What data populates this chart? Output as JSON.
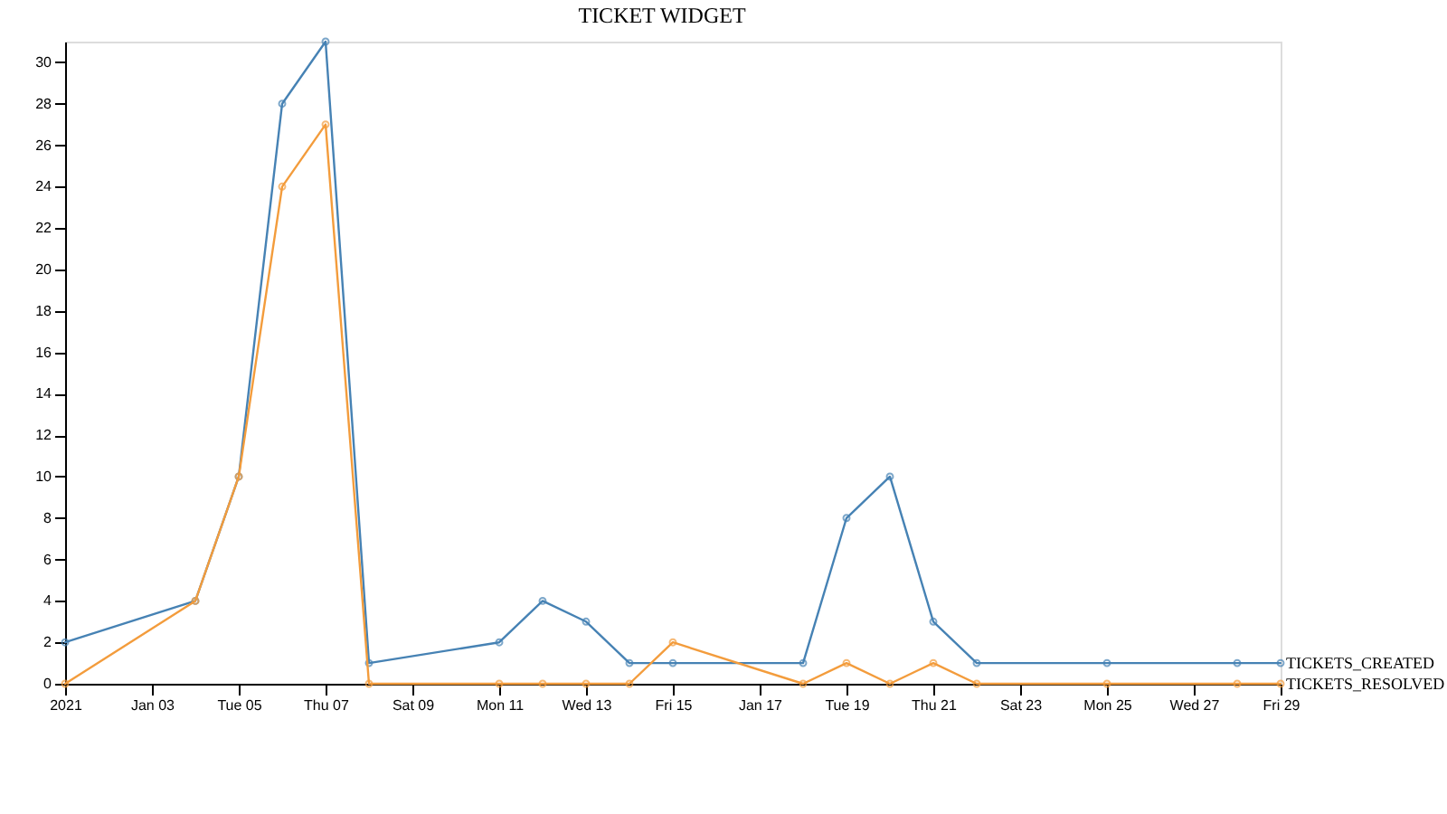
{
  "chart_data": {
    "type": "line",
    "title": "TICKET WIDGET",
    "x": [
      "2021-01-01",
      "2021-01-04",
      "2021-01-05",
      "2021-01-06",
      "2021-01-07",
      "2021-01-08",
      "2021-01-11",
      "2021-01-12",
      "2021-01-13",
      "2021-01-14",
      "2021-01-15",
      "2021-01-18",
      "2021-01-19",
      "2021-01-20",
      "2021-01-21",
      "2021-01-22",
      "2021-01-25",
      "2021-01-28",
      "2021-01-29"
    ],
    "series": [
      {
        "name": "TICKETS_CREATED",
        "color": "#4682b4",
        "values": [
          2,
          4,
          10,
          28,
          31,
          1,
          2,
          4,
          3,
          1,
          1,
          1,
          8,
          10,
          3,
          1,
          1,
          1,
          1
        ]
      },
      {
        "name": "TICKETS_RESOLVED",
        "color": "#f39c3c",
        "values": [
          0,
          4,
          10,
          24,
          27,
          0,
          0,
          0,
          0,
          0,
          2,
          0,
          1,
          0,
          1,
          0,
          0,
          0,
          0
        ]
      }
    ],
    "xlim": [
      "2021-01-01",
      "2021-01-29"
    ],
    "xticks": [
      {
        "value": "2021-01-01",
        "label": "2021"
      },
      {
        "value": "2021-01-03",
        "label": "Jan 03"
      },
      {
        "value": "2021-01-05",
        "label": "Tue 05"
      },
      {
        "value": "2021-01-07",
        "label": "Thu 07"
      },
      {
        "value": "2021-01-09",
        "label": "Sat 09"
      },
      {
        "value": "2021-01-11",
        "label": "Mon 11"
      },
      {
        "value": "2021-01-13",
        "label": "Wed 13"
      },
      {
        "value": "2021-01-15",
        "label": "Fri 15"
      },
      {
        "value": "2021-01-17",
        "label": "Jan 17"
      },
      {
        "value": "2021-01-19",
        "label": "Tue 19"
      },
      {
        "value": "2021-01-21",
        "label": "Thu 21"
      },
      {
        "value": "2021-01-23",
        "label": "Sat 23"
      },
      {
        "value": "2021-01-25",
        "label": "Mon 25"
      },
      {
        "value": "2021-01-27",
        "label": "Wed 27"
      },
      {
        "value": "2021-01-29",
        "label": "Fri 29"
      }
    ],
    "ylim": [
      0,
      31
    ],
    "yticks": [
      0,
      2,
      4,
      6,
      8,
      10,
      12,
      14,
      16,
      18,
      20,
      22,
      24,
      26,
      28,
      30
    ],
    "marker": "circle",
    "line_style": "solid"
  }
}
